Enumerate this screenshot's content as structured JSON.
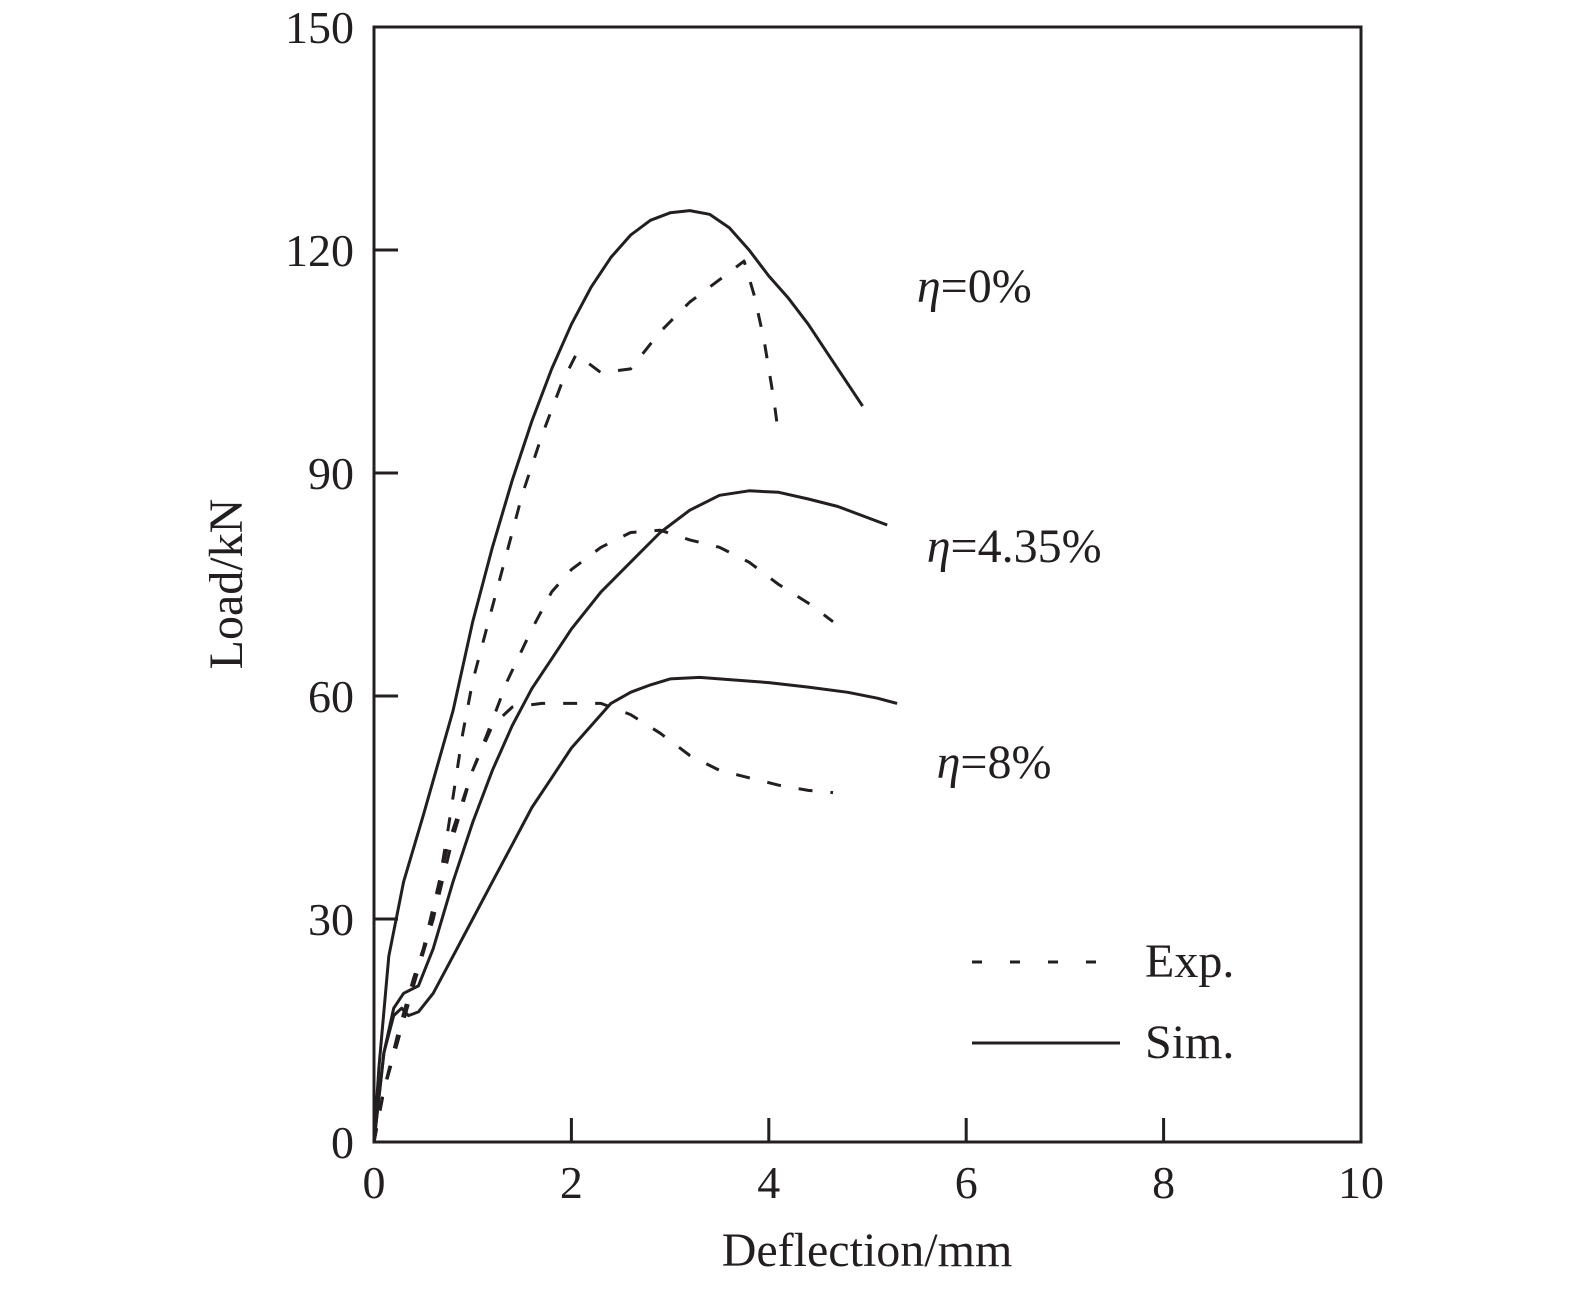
{
  "chart_data": {
    "type": "line",
    "xlabel": "Deflection/mm",
    "ylabel": "Load/kN",
    "xlim": [
      0,
      10
    ],
    "ylim": [
      0,
      150
    ],
    "xticks": [
      "0",
      "2",
      "4",
      "6",
      "8",
      "10"
    ],
    "yticks": [
      "0",
      "30",
      "60",
      "90",
      "120",
      "150"
    ],
    "grid": false,
    "legend": {
      "position": "bottom-right",
      "entries": [
        {
          "label": "Exp.",
          "style": "dashed"
        },
        {
          "label": "Sim.",
          "style": "solid"
        }
      ]
    },
    "line_color": "#231f20",
    "annotations": [
      {
        "symbol": "η",
        "text": "=0%",
        "x": 5.5,
        "y": 113
      },
      {
        "symbol": "η",
        "text": "=4.35%",
        "x": 5.6,
        "y": 78
      },
      {
        "symbol": "η",
        "text": "=8%",
        "x": 5.7,
        "y": 49
      }
    ],
    "series": [
      {
        "group": "η=0%",
        "kind": "Sim.",
        "style": "solid",
        "points": [
          [
            0,
            0
          ],
          [
            0.05,
            10
          ],
          [
            0.15,
            25
          ],
          [
            0.3,
            35
          ],
          [
            0.5,
            44
          ],
          [
            0.8,
            58
          ],
          [
            1.0,
            70
          ],
          [
            1.2,
            80
          ],
          [
            1.4,
            89
          ],
          [
            1.6,
            97
          ],
          [
            1.8,
            104
          ],
          [
            2.0,
            110
          ],
          [
            2.2,
            115
          ],
          [
            2.4,
            119
          ],
          [
            2.6,
            122
          ],
          [
            2.8,
            124
          ],
          [
            3.0,
            125
          ],
          [
            3.2,
            125.3
          ],
          [
            3.4,
            124.8
          ],
          [
            3.6,
            123
          ],
          [
            3.8,
            120
          ],
          [
            4.0,
            116.5
          ],
          [
            4.2,
            113.5
          ],
          [
            4.4,
            110
          ],
          [
            4.6,
            106
          ],
          [
            4.8,
            102
          ],
          [
            4.95,
            99
          ]
        ]
      },
      {
        "group": "η=0%",
        "kind": "Exp.",
        "style": "dashed",
        "points": [
          [
            0,
            0
          ],
          [
            0.1,
            7
          ],
          [
            0.25,
            15
          ],
          [
            0.4,
            22
          ],
          [
            0.6,
            30
          ],
          [
            0.75,
            42
          ],
          [
            0.9,
            55
          ],
          [
            1.0,
            62
          ],
          [
            1.2,
            72
          ],
          [
            1.4,
            82
          ],
          [
            1.5,
            87
          ],
          [
            1.7,
            95
          ],
          [
            1.9,
            102
          ],
          [
            2.05,
            106
          ],
          [
            2.3,
            103.5
          ],
          [
            2.6,
            104
          ],
          [
            2.9,
            109
          ],
          [
            3.2,
            113
          ],
          [
            3.5,
            116
          ],
          [
            3.75,
            118.5
          ],
          [
            3.85,
            114
          ],
          [
            3.95,
            108
          ],
          [
            4.05,
            100
          ],
          [
            4.1,
            95
          ]
        ]
      },
      {
        "group": "η=4.35%",
        "kind": "Sim.",
        "style": "solid",
        "points": [
          [
            0,
            0
          ],
          [
            0.1,
            12
          ],
          [
            0.2,
            18
          ],
          [
            0.3,
            20
          ],
          [
            0.45,
            21
          ],
          [
            0.6,
            26
          ],
          [
            0.8,
            35
          ],
          [
            1.0,
            43
          ],
          [
            1.2,
            50
          ],
          [
            1.4,
            56
          ],
          [
            1.6,
            61
          ],
          [
            1.8,
            65
          ],
          [
            2.0,
            69
          ],
          [
            2.3,
            74
          ],
          [
            2.6,
            78
          ],
          [
            2.9,
            82
          ],
          [
            3.2,
            85
          ],
          [
            3.5,
            87
          ],
          [
            3.8,
            87.6
          ],
          [
            4.1,
            87.4
          ],
          [
            4.4,
            86.5
          ],
          [
            4.7,
            85.5
          ],
          [
            5.0,
            84
          ],
          [
            5.2,
            83
          ]
        ]
      },
      {
        "group": "η=4.35%",
        "kind": "Exp.",
        "style": "dashed",
        "points": [
          [
            0,
            0
          ],
          [
            0.1,
            7
          ],
          [
            0.25,
            14
          ],
          [
            0.4,
            21
          ],
          [
            0.6,
            30
          ],
          [
            0.8,
            41
          ],
          [
            1.0,
            50
          ],
          [
            1.15,
            55
          ],
          [
            1.35,
            62
          ],
          [
            1.6,
            69
          ],
          [
            1.8,
            74
          ],
          [
            2.0,
            77
          ],
          [
            2.3,
            80
          ],
          [
            2.6,
            82
          ],
          [
            2.9,
            82.3
          ],
          [
            3.2,
            81
          ],
          [
            3.5,
            80
          ],
          [
            3.8,
            78
          ],
          [
            4.1,
            75
          ],
          [
            4.4,
            72.5
          ],
          [
            4.65,
            70
          ]
        ]
      },
      {
        "group": "η=8%",
        "kind": "Sim.",
        "style": "solid",
        "points": [
          [
            0,
            0
          ],
          [
            0.1,
            12
          ],
          [
            0.2,
            17
          ],
          [
            0.28,
            18
          ],
          [
            0.35,
            17
          ],
          [
            0.45,
            17.5
          ],
          [
            0.6,
            20
          ],
          [
            0.8,
            25
          ],
          [
            1.0,
            30
          ],
          [
            1.2,
            35
          ],
          [
            1.4,
            40
          ],
          [
            1.6,
            45
          ],
          [
            1.8,
            49
          ],
          [
            2.0,
            53
          ],
          [
            2.2,
            56
          ],
          [
            2.4,
            59
          ],
          [
            2.6,
            60.5
          ],
          [
            2.8,
            61.5
          ],
          [
            3.0,
            62.3
          ],
          [
            3.3,
            62.5
          ],
          [
            3.6,
            62.2
          ],
          [
            4.0,
            61.8
          ],
          [
            4.4,
            61.2
          ],
          [
            4.8,
            60.5
          ],
          [
            5.1,
            59.7
          ],
          [
            5.3,
            59
          ]
        ]
      },
      {
        "group": "η=8%",
        "kind": "Exp.",
        "style": "dashed",
        "points": [
          [
            0,
            0
          ],
          [
            0.1,
            7
          ],
          [
            0.25,
            14
          ],
          [
            0.5,
            26
          ],
          [
            0.75,
            40
          ],
          [
            1.0,
            50
          ],
          [
            1.2,
            56
          ],
          [
            1.4,
            58.5
          ],
          [
            1.7,
            59
          ],
          [
            2.0,
            59
          ],
          [
            2.3,
            59
          ],
          [
            2.6,
            57.5
          ],
          [
            2.9,
            55
          ],
          [
            3.2,
            52
          ],
          [
            3.5,
            50
          ],
          [
            3.8,
            49
          ],
          [
            4.1,
            48
          ],
          [
            4.4,
            47.3
          ],
          [
            4.65,
            47
          ]
        ]
      }
    ]
  }
}
